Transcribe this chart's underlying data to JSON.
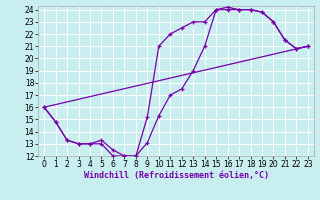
{
  "bg_color": "#c8eef0",
  "grid_color": "#ffffff",
  "line_color": "#7700aa",
  "xlabel": "Windchill (Refroidissement éolien,°C)",
  "xlim": [
    -0.5,
    23.5
  ],
  "ylim": [
    12,
    24.3
  ],
  "xticks": [
    0,
    1,
    2,
    3,
    4,
    5,
    6,
    7,
    8,
    9,
    10,
    11,
    12,
    13,
    14,
    15,
    16,
    17,
    18,
    19,
    20,
    21,
    22,
    23
  ],
  "yticks": [
    12,
    13,
    14,
    15,
    16,
    17,
    18,
    19,
    20,
    21,
    22,
    23,
    24
  ],
  "line1_x": [
    0,
    1,
    2,
    3,
    4,
    5,
    6,
    7,
    8,
    9,
    10,
    11,
    12,
    13,
    14,
    15,
    16,
    17,
    18,
    19,
    20,
    21,
    22,
    23
  ],
  "line1_y": [
    16,
    14.8,
    13.3,
    13.0,
    13.0,
    13.0,
    12.0,
    12.0,
    12.0,
    13.1,
    15.3,
    17.0,
    17.5,
    19.0,
    21.0,
    24.0,
    24.0,
    24.0,
    24.0,
    23.8,
    23.0,
    21.5,
    20.8,
    21.0
  ],
  "line2_x": [
    0,
    1,
    2,
    3,
    4,
    5,
    6,
    7,
    8,
    9,
    10,
    11,
    12,
    13,
    14,
    15,
    16,
    17,
    18,
    19,
    20,
    21,
    22,
    23
  ],
  "line2_y": [
    16,
    14.8,
    13.3,
    13.0,
    13.0,
    13.3,
    12.5,
    12.0,
    12.0,
    15.2,
    21.0,
    22.0,
    22.5,
    23.0,
    23.0,
    24.0,
    24.2,
    24.0,
    24.0,
    23.8,
    23.0,
    21.5,
    20.8,
    21.0
  ],
  "line3_x": [
    0,
    23
  ],
  "line3_y": [
    16,
    21
  ],
  "tick_fontsize": 5.5,
  "xlabel_fontsize": 6.0
}
